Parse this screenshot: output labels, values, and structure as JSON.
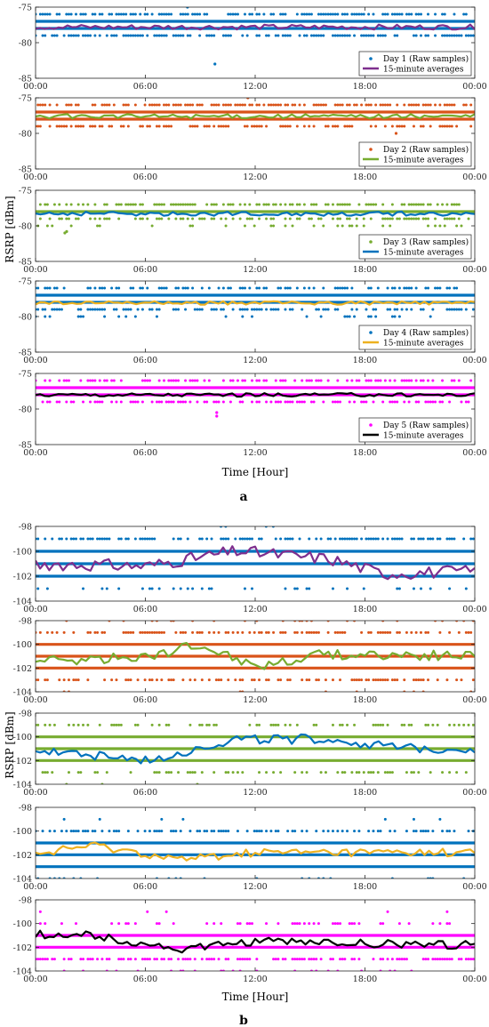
{
  "figure": {
    "ylabel": "RSRP [dBm]",
    "xlabel": "Time [Hour]",
    "panel_a_label": "a",
    "panel_b_label": "b",
    "xticks": [
      "00:00",
      "06:00",
      "12:00",
      "18:00",
      "00:00"
    ]
  },
  "colors": {
    "blue": "#0072BD",
    "orange": "#D95319",
    "green": "#77AC30",
    "purple": "#7E2F8E",
    "yellow": "#EDB120",
    "magenta": "#FF00FF",
    "black": "#000000"
  },
  "chart_data": [
    {
      "type": "scatter",
      "panel": "a",
      "day": 1,
      "ylim": [
        -85,
        -75
      ],
      "yticks": [
        "-75",
        "-80",
        "-85"
      ],
      "raw_color": "blue",
      "avg_color": "purple",
      "legend": {
        "raw": "Day 1 (Raw samples)",
        "avg": "15-minute averages",
        "position": "bottom-right"
      },
      "levels": [
        {
          "v": -76,
          "d": 0.55
        },
        {
          "v": -77,
          "d": 1
        },
        {
          "v": -78,
          "d": 1
        },
        {
          "v": -79,
          "d": 0.55
        }
      ],
      "outliers": [
        [
          8.3,
          -75
        ],
        [
          9.8,
          -83
        ]
      ],
      "avg": {
        "base": -77.8,
        "amp": 0.35
      }
    },
    {
      "type": "scatter",
      "panel": "a",
      "day": 2,
      "ylim": [
        -85,
        -75
      ],
      "yticks": [
        "-75",
        "-80",
        "-85"
      ],
      "raw_color": "orange",
      "avg_color": "green",
      "legend": {
        "raw": "Day 2 (Raw samples)",
        "avg": "15-minute averages",
        "position": "bottom-right"
      },
      "levels": [
        {
          "v": -76,
          "d": 0.6
        },
        {
          "v": -77,
          "d": 1
        },
        {
          "v": -78,
          "d": 1
        },
        {
          "v": -79,
          "d": 0.5
        }
      ],
      "outliers": [
        [
          11.6,
          -75
        ],
        [
          19.7,
          -80
        ]
      ],
      "avg": {
        "base": -77.6,
        "amp": 0.3
      }
    },
    {
      "type": "scatter",
      "panel": "a",
      "day": 3,
      "ylim": [
        -85,
        -75
      ],
      "yticks": [
        "-75",
        "-80",
        "-85"
      ],
      "raw_color": "green",
      "avg_color": "blue",
      "legend": {
        "raw": "Day 3 (Raw samples)",
        "avg": "15-minute averages",
        "position": "bottom-right"
      },
      "levels": [
        {
          "v": -77,
          "d": 0.55
        },
        {
          "v": -78,
          "d": 1
        },
        {
          "v": -79,
          "d": 0.45
        },
        {
          "v": -80,
          "d": 0.2
        }
      ],
      "outliers": [
        [
          1.6,
          -81
        ],
        [
          1.7,
          -80.8
        ]
      ],
      "avg": {
        "base": -78.3,
        "amp": 0.3
      }
    },
    {
      "type": "scatter",
      "panel": "a",
      "day": 4,
      "ylim": [
        -85,
        -75
      ],
      "yticks": [
        "-75",
        "-80",
        "-85"
      ],
      "raw_color": "blue",
      "avg_color": "yellow",
      "legend": {
        "raw": "Day 4 (Raw samples)",
        "avg": "15-minute averages",
        "position": "bottom-right"
      },
      "levels": [
        {
          "v": -76,
          "d": 0.5
        },
        {
          "v": -77,
          "d": 1
        },
        {
          "v": -78,
          "d": 1
        },
        {
          "v": -79,
          "d": 0.5
        },
        {
          "v": -80,
          "d": 0.12
        }
      ],
      "outliers": [],
      "avg": {
        "base": -78.1,
        "amp": 0.25
      }
    },
    {
      "type": "scatter",
      "panel": "a",
      "day": 5,
      "ylim": [
        -85,
        -75
      ],
      "yticks": [
        "-75",
        "-80",
        "-85"
      ],
      "raw_color": "magenta",
      "avg_color": "black",
      "legend": {
        "raw": "Day 5 (Raw samples)",
        "avg": "15-minute averages",
        "position": "bottom-right"
      },
      "levels": [
        {
          "v": -76,
          "d": 0.45
        },
        {
          "v": -77,
          "d": 1
        },
        {
          "v": -78,
          "d": 1
        },
        {
          "v": -79,
          "d": 0.5
        }
      ],
      "outliers": [
        [
          9.9,
          -80.5
        ],
        [
          9.9,
          -81
        ]
      ],
      "avg": {
        "base": -78,
        "amp": 0.25
      }
    },
    {
      "type": "scatter",
      "panel": "b",
      "day": 1,
      "ylim": [
        -104,
        -98
      ],
      "yticks": [
        "-98",
        "-100",
        "-102",
        "-104"
      ],
      "raw_color": "blue",
      "avg_color": "purple",
      "levels": [
        {
          "v": -98,
          "d": 0.1,
          "from": 10,
          "to": 13
        },
        {
          "v": -99,
          "d": 0.5
        },
        {
          "v": -100,
          "d": 1
        },
        {
          "v": -101,
          "d": 1
        },
        {
          "v": -102,
          "d": 1
        },
        {
          "v": -103,
          "d": 0.15
        }
      ],
      "outliers": [],
      "avg": {
        "base": -101.2,
        "amp": 0.5,
        "trend": [
          [
            0,
            -101
          ],
          [
            6,
            -101.2
          ],
          [
            11,
            -100
          ],
          [
            16,
            -100.6
          ],
          [
            19,
            -101.8
          ],
          [
            24,
            -101.6
          ]
        ]
      }
    },
    {
      "type": "scatter",
      "panel": "b",
      "day": 2,
      "ylim": [
        -104,
        -98
      ],
      "yticks": [
        "-98",
        "-100",
        "-102",
        "-104"
      ],
      "raw_color": "orange",
      "avg_color": "green",
      "levels": [
        {
          "v": -98,
          "d": 0.12
        },
        {
          "v": -99,
          "d": 0.5
        },
        {
          "v": -100,
          "d": 1
        },
        {
          "v": -101,
          "d": 1
        },
        {
          "v": -102,
          "d": 1
        },
        {
          "v": -103,
          "d": 0.45
        },
        {
          "v": -104,
          "d": 0.08
        }
      ],
      "outliers": [],
      "avg": {
        "base": -101,
        "amp": 0.45,
        "trend": [
          [
            0,
            -101.5
          ],
          [
            6,
            -101
          ],
          [
            9,
            -100
          ],
          [
            12,
            -101.8
          ],
          [
            16,
            -100.8
          ],
          [
            24,
            -101
          ]
        ]
      }
    },
    {
      "type": "scatter",
      "panel": "b",
      "day": 3,
      "ylim": [
        -104,
        -98
      ],
      "yticks": [
        "-98",
        "-100",
        "-102",
        "-104"
      ],
      "raw_color": "green",
      "avg_color": "blue",
      "levels": [
        {
          "v": -99,
          "d": 0.35
        },
        {
          "v": -100,
          "d": 1
        },
        {
          "v": -101,
          "d": 1
        },
        {
          "v": -102,
          "d": 1
        },
        {
          "v": -103,
          "d": 0.3
        },
        {
          "v": -104,
          "d": 0.05
        }
      ],
      "outliers": [],
      "avg": {
        "base": -101,
        "amp": 0.4,
        "trend": [
          [
            0,
            -101
          ],
          [
            6,
            -102
          ],
          [
            11,
            -100.2
          ],
          [
            16,
            -100.2
          ],
          [
            20,
            -101
          ],
          [
            24,
            -101
          ]
        ]
      }
    },
    {
      "type": "scatter",
      "panel": "b",
      "day": 4,
      "ylim": [
        -104,
        -98
      ],
      "yticks": [
        "-98",
        "-100",
        "-102",
        "-104"
      ],
      "raw_color": "blue",
      "avg_color": "yellow",
      "levels": [
        {
          "v": -99,
          "d": 0.03
        },
        {
          "v": -100,
          "d": 0.4
        },
        {
          "v": -101,
          "d": 1
        },
        {
          "v": -102,
          "d": 1
        },
        {
          "v": -103,
          "d": 1
        },
        {
          "v": -104,
          "d": 0.15
        }
      ],
      "outliers": [],
      "avg": {
        "base": -101.9,
        "amp": 0.35,
        "trend": [
          [
            0,
            -102
          ],
          [
            3,
            -101.2
          ],
          [
            8,
            -102.4
          ],
          [
            12,
            -101.8
          ],
          [
            24,
            -101.8
          ]
        ]
      }
    },
    {
      "type": "scatter",
      "panel": "b",
      "day": 5,
      "ylim": [
        -104,
        -98
      ],
      "yticks": [
        "-98",
        "-100",
        "-102",
        "-104"
      ],
      "raw_color": "magenta",
      "avg_color": "black",
      "levels": [
        {
          "v": -99,
          "d": 0.05
        },
        {
          "v": -100,
          "d": 0.25
        },
        {
          "v": -101,
          "d": 1
        },
        {
          "v": -102,
          "d": 1
        },
        {
          "v": -103,
          "d": 0.6
        },
        {
          "v": -104,
          "d": 0.12
        }
      ],
      "outliers": [],
      "avg": {
        "base": -101.7,
        "amp": 0.35,
        "trend": [
          [
            0,
            -100.9
          ],
          [
            3,
            -101
          ],
          [
            8,
            -102.2
          ],
          [
            12,
            -101.5
          ],
          [
            24,
            -101.8
          ]
        ]
      }
    }
  ]
}
